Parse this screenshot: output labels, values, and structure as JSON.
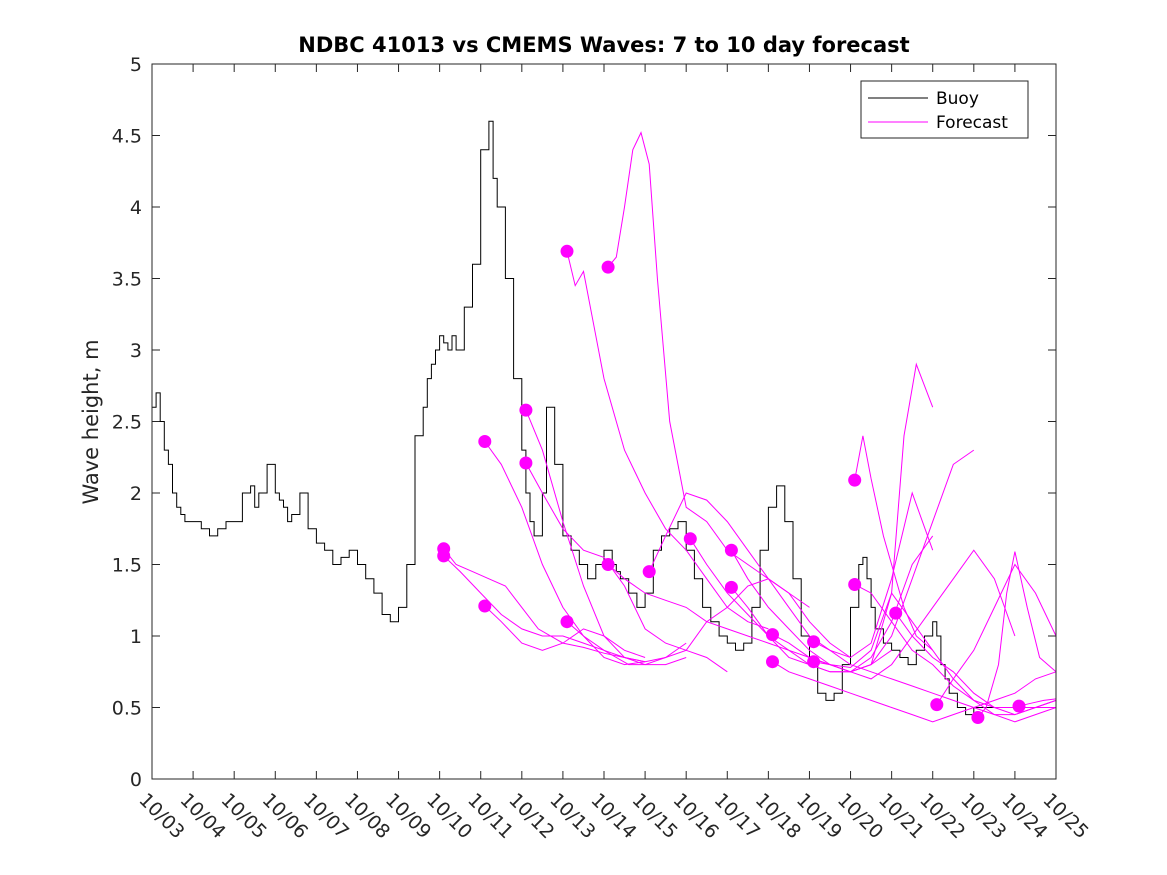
{
  "chart_data": {
    "type": "line",
    "title": "NDBC 41013 vs CMEMS Waves: 7 to 10 day forecast",
    "xlabel": "",
    "ylabel": "Wave height, m",
    "xlim": [
      0,
      22
    ],
    "ylim": [
      0,
      5
    ],
    "x_ticks": [
      0,
      1,
      2,
      3,
      4,
      5,
      6,
      7,
      8,
      9,
      10,
      11,
      12,
      13,
      14,
      15,
      16,
      17,
      18,
      19,
      20,
      21,
      22
    ],
    "x_tick_labels": [
      "10/03",
      "10/04",
      "10/05",
      "10/06",
      "10/07",
      "10/08",
      "10/09",
      "10/10",
      "10/11",
      "10/12",
      "10/13",
      "10/14",
      "10/15",
      "10/16",
      "10/17",
      "10/18",
      "10/19",
      "10/20",
      "10/21",
      "10/22",
      "10/23",
      "10/24",
      "10/25"
    ],
    "y_ticks": [
      0,
      0.5,
      1,
      1.5,
      2,
      2.5,
      3,
      3.5,
      4,
      4.5,
      5
    ],
    "y_tick_labels": [
      "0",
      "0.5",
      "1",
      "1.5",
      "2",
      "2.5",
      "3",
      "3.5",
      "4",
      "4.5",
      "5"
    ],
    "legend": {
      "position": "top-right",
      "entries": [
        {
          "label": "Buoy",
          "color": "#000000"
        },
        {
          "label": "Forecast",
          "color": "#ff00ff"
        }
      ]
    },
    "buoy": {
      "name": "Buoy",
      "color": "#000000",
      "x": [
        0,
        0.1,
        0.2,
        0.3,
        0.4,
        0.5,
        0.6,
        0.7,
        0.8,
        0.9,
        1,
        1.2,
        1.4,
        1.6,
        1.8,
        2,
        2.2,
        2.4,
        2.5,
        2.6,
        2.8,
        3,
        3.1,
        3.2,
        3.3,
        3.4,
        3.6,
        3.8,
        4,
        4.2,
        4.4,
        4.6,
        4.8,
        5,
        5.2,
        5.4,
        5.6,
        5.8,
        6,
        6.2,
        6.4,
        6.6,
        6.7,
        6.8,
        6.9,
        7,
        7.1,
        7.2,
        7.3,
        7.4,
        7.6,
        7.8,
        8,
        8.2,
        8.3,
        8.4,
        8.6,
        8.8,
        9,
        9.1,
        9.2,
        9.3,
        9.4,
        9.5,
        9.6,
        9.8,
        10,
        10.2,
        10.4,
        10.6,
        10.8,
        11,
        11.2,
        11.3,
        11.4,
        11.6,
        11.8,
        12,
        12.2,
        12.4,
        12.6,
        12.8,
        13,
        13.2,
        13.4,
        13.6,
        13.8,
        14,
        14.2,
        14.4,
        14.6,
        14.8,
        15,
        15.2,
        15.4,
        15.6,
        15.8,
        16,
        16.2,
        16.4,
        16.6,
        16.8,
        17,
        17.2,
        17.3,
        17.4,
        17.5,
        17.6,
        17.8,
        18,
        18.2,
        18.4,
        18.6,
        18.8,
        19,
        19.1,
        19.2,
        19.3,
        19.4,
        19.6,
        19.8,
        20,
        20.2,
        20.4,
        20.6,
        20.8,
        21,
        21.2,
        21.4,
        22
      ],
      "y": [
        2.6,
        2.7,
        2.5,
        2.3,
        2.2,
        2.0,
        1.9,
        1.85,
        1.8,
        1.8,
        1.8,
        1.75,
        1.7,
        1.75,
        1.8,
        1.8,
        2.0,
        2.05,
        1.9,
        2.0,
        2.2,
        2.0,
        1.95,
        1.9,
        1.8,
        1.85,
        2.0,
        1.75,
        1.65,
        1.6,
        1.5,
        1.55,
        1.6,
        1.5,
        1.4,
        1.3,
        1.15,
        1.1,
        1.2,
        1.5,
        2.4,
        2.6,
        2.8,
        2.9,
        3.0,
        3.1,
        3.05,
        3.0,
        3.1,
        3.0,
        3.3,
        3.6,
        4.4,
        4.6,
        4.2,
        4.0,
        3.5,
        2.8,
        2.3,
        2.0,
        1.8,
        1.7,
        1.7,
        2.0,
        2.6,
        2.2,
        1.7,
        1.6,
        1.5,
        1.4,
        1.5,
        1.6,
        1.5,
        1.45,
        1.4,
        1.3,
        1.2,
        1.3,
        1.6,
        1.7,
        1.75,
        1.8,
        1.6,
        1.4,
        1.2,
        1.1,
        1.0,
        0.95,
        0.9,
        0.95,
        1.2,
        1.6,
        1.9,
        2.05,
        1.8,
        1.4,
        1.0,
        0.8,
        0.6,
        0.55,
        0.6,
        0.8,
        1.2,
        1.5,
        1.55,
        1.4,
        1.2,
        1.05,
        0.95,
        0.9,
        0.85,
        0.8,
        0.9,
        1.0,
        1.1,
        1.0,
        0.8,
        0.7,
        0.6,
        0.5,
        0.45,
        0.5,
        0.5,
        0.5,
        0.5,
        0.5,
        0.5,
        0.5,
        0.5,
        0.5
      ]
    },
    "series": [
      {
        "name": "Forecast 1",
        "color": "#ff00ff",
        "x": [
          7.1,
          7.4,
          7.8,
          8.2,
          8.6,
          9.0,
          9.4,
          10.0,
          10.5,
          11.0,
          11.5,
          12.0
        ],
        "y": [
          1.61,
          1.5,
          1.45,
          1.4,
          1.35,
          1.2,
          1.05,
          0.95,
          0.92,
          0.88,
          0.85,
          0.82
        ]
      },
      {
        "name": "Forecast 2",
        "color": "#ff00ff",
        "x": [
          7.1,
          7.5,
          8.0,
          8.5,
          9.0,
          9.5,
          10.0,
          10.5,
          11.0,
          11.5,
          12.0
        ],
        "y": [
          1.56,
          1.45,
          1.3,
          1.15,
          1.05,
          1.0,
          1.0,
          0.95,
          0.9,
          0.85,
          0.82
        ]
      },
      {
        "name": "Forecast 3",
        "color": "#ff00ff",
        "x": [
          8.1,
          8.5,
          9.0,
          9.5,
          10.0,
          10.5,
          11.0,
          11.5,
          12.0,
          12.5,
          13.0
        ],
        "y": [
          2.36,
          2.2,
          1.9,
          1.5,
          1.2,
          1.0,
          0.85,
          0.8,
          0.82,
          0.85,
          0.95
        ]
      },
      {
        "name": "Forecast 4",
        "color": "#ff00ff",
        "x": [
          8.1,
          8.5,
          9.0,
          9.5,
          10.0,
          10.5,
          11.0,
          11.5,
          12.0
        ],
        "y": [
          1.21,
          1.1,
          0.95,
          0.9,
          0.95,
          1.05,
          1.0,
          0.9,
          0.85
        ]
      },
      {
        "name": "Forecast 5",
        "color": "#ff00ff",
        "x": [
          9.1,
          9.5,
          10.0,
          10.5,
          11.0,
          11.5,
          12.0,
          12.5,
          13.0
        ],
        "y": [
          2.58,
          2.3,
          1.8,
          1.35,
          1.0,
          0.85,
          0.8,
          0.8,
          0.85
        ]
      },
      {
        "name": "Forecast 6",
        "color": "#ff00ff",
        "x": [
          9.1,
          9.5,
          10.0,
          10.5,
          11.0,
          11.5,
          12.0,
          12.5,
          13.0,
          13.5,
          14.0
        ],
        "y": [
          2.21,
          2.0,
          1.75,
          1.6,
          1.55,
          1.35,
          1.05,
          0.95,
          0.9,
          0.85,
          0.75
        ]
      },
      {
        "name": "Forecast 7",
        "color": "#ff00ff",
        "x": [
          10.1,
          10.3,
          10.5,
          10.8,
          11.0,
          11.5,
          12.0,
          12.5,
          13.0,
          13.5,
          14.0,
          14.5,
          15.0
        ],
        "y": [
          3.69,
          3.45,
          3.55,
          3.1,
          2.8,
          2.3,
          2.0,
          1.75,
          1.6,
          1.4,
          1.2,
          1.1,
          1.05
        ]
      },
      {
        "name": "Forecast 8",
        "color": "#ff00ff",
        "x": [
          10.1,
          10.5,
          11.0,
          11.3,
          11.6,
          12.0,
          12.5,
          13.0,
          13.5,
          14.0,
          14.5,
          15.0,
          15.5,
          16.0
        ],
        "y": [
          1.1,
          1.0,
          0.9,
          0.85,
          0.8,
          0.8,
          0.85,
          0.9,
          1.1,
          1.2,
          1.35,
          1.4,
          1.3,
          1.2
        ]
      },
      {
        "name": "Forecast 9",
        "color": "#ff00ff",
        "x": [
          11.1,
          11.3,
          11.5,
          11.7,
          11.9,
          12.1,
          12.3,
          12.6,
          13.0,
          13.5,
          14.0,
          14.5,
          15.0,
          15.5,
          16.0,
          16.5,
          17.0
        ],
        "y": [
          3.58,
          3.65,
          4.0,
          4.4,
          4.52,
          4.3,
          3.5,
          2.5,
          1.9,
          1.8,
          1.6,
          1.5,
          1.4,
          1.3,
          1.1,
          0.95,
          0.85
        ]
      },
      {
        "name": "Forecast 10",
        "color": "#ff00ff",
        "x": [
          11.1,
          11.5,
          12.0,
          12.5,
          13.0,
          13.5,
          14.0,
          14.5,
          15.0,
          15.5,
          16.0,
          16.5,
          17.0,
          17.5,
          18.0
        ],
        "y": [
          1.5,
          1.4,
          1.3,
          1.25,
          1.2,
          1.1,
          1.05,
          1.0,
          0.95,
          0.9,
          0.85,
          0.8,
          0.75,
          0.8,
          0.9
        ]
      },
      {
        "name": "Forecast 11",
        "color": "#ff00ff",
        "x": [
          12.1,
          12.5,
          13.0,
          13.5,
          14.0,
          14.5,
          15.0,
          15.5,
          16.0,
          16.5,
          17.0,
          17.5,
          18.0,
          18.5,
          19.0
        ],
        "y": [
          1.45,
          1.7,
          2.0,
          1.95,
          1.8,
          1.6,
          1.4,
          1.2,
          1.0,
          0.9,
          0.85,
          0.95,
          1.4,
          2.0,
          1.6
        ]
      },
      {
        "name": "Forecast 12",
        "color": "#ff00ff",
        "x": [
          13.1,
          13.5,
          14.0,
          14.5,
          15.0,
          15.5,
          16.0,
          16.5,
          17.0,
          17.5,
          18.0,
          18.5,
          19.0,
          19.5,
          20.0
        ],
        "y": [
          1.68,
          1.5,
          1.3,
          1.15,
          1.0,
          0.9,
          0.8,
          0.75,
          0.75,
          0.8,
          1.0,
          1.4,
          1.8,
          2.2,
          2.3
        ]
      },
      {
        "name": "Forecast 13",
        "color": "#ff00ff",
        "x": [
          14.1,
          14.5,
          15.0,
          15.5,
          16.0,
          16.5,
          17.0,
          17.5,
          18.0,
          18.3,
          18.6,
          19.0
        ],
        "y": [
          1.6,
          1.4,
          1.2,
          1.05,
          0.9,
          0.8,
          0.75,
          0.8,
          1.3,
          2.4,
          2.9,
          2.6
        ]
      },
      {
        "name": "Forecast 14",
        "color": "#ff00ff",
        "x": [
          14.1,
          14.5,
          15.0,
          15.5,
          16.0,
          16.5,
          17.0,
          17.5,
          18.0,
          18.5,
          19.0
        ],
        "y": [
          1.34,
          1.2,
          1.0,
          0.85,
          0.8,
          0.75,
          0.75,
          0.85,
          1.1,
          1.5,
          1.7
        ]
      },
      {
        "name": "Forecast 15",
        "color": "#ff00ff",
        "x": [
          15.1,
          15.5,
          16.0,
          16.5,
          17.0,
          17.5,
          18.0,
          18.5,
          19.0,
          19.5,
          20.0,
          20.5,
          21.0
        ],
        "y": [
          1.01,
          0.95,
          0.85,
          0.8,
          0.75,
          0.7,
          0.8,
          1.0,
          1.2,
          1.4,
          1.6,
          1.4,
          1.0
        ]
      },
      {
        "name": "Forecast 16",
        "color": "#ff00ff",
        "x": [
          15.1,
          15.5,
          16.0,
          16.5,
          17.0,
          17.5,
          18.0,
          18.5,
          19.0,
          19.5,
          20.0,
          20.5,
          21.0,
          21.5,
          22.0
        ],
        "y": [
          0.82,
          0.75,
          0.7,
          0.65,
          0.6,
          0.55,
          0.5,
          0.45,
          0.4,
          0.45,
          0.5,
          0.55,
          0.6,
          0.7,
          0.75
        ]
      },
      {
        "name": "Forecast 17",
        "color": "#ff00ff",
        "x": [
          16.1,
          16.5,
          17.0,
          17.5,
          18.0,
          18.5,
          19.0,
          19.5,
          20.0,
          20.5,
          21.0,
          21.5,
          22.0
        ],
        "y": [
          0.96,
          0.9,
          0.8,
          0.75,
          0.7,
          0.65,
          0.6,
          0.55,
          0.5,
          0.45,
          0.45,
          0.5,
          0.55
        ]
      },
      {
        "name": "Forecast 18",
        "color": "#ff00ff",
        "x": [
          16.1,
          16.5,
          17.0,
          17.5,
          18.0,
          18.5,
          19.0,
          19.5,
          20.0,
          20.5,
          21.0,
          21.5,
          22.0
        ],
        "y": [
          0.82,
          0.8,
          0.78,
          0.9,
          1.3,
          1.1,
          0.9,
          0.7,
          0.55,
          0.45,
          0.4,
          0.45,
          0.5
        ]
      },
      {
        "name": "Forecast 19",
        "color": "#ff00ff",
        "x": [
          17.1,
          17.3,
          17.5,
          17.8,
          18.0,
          18.3,
          18.6,
          19.0
        ],
        "y": [
          2.09,
          2.4,
          2.1,
          1.7,
          1.5,
          1.2,
          1.0,
          0.9
        ]
      },
      {
        "name": "Forecast 20",
        "color": "#ff00ff",
        "x": [
          17.1,
          17.5,
          18.0,
          18.5,
          19.0,
          19.5,
          20.0,
          20.5,
          21.0,
          21.5,
          22.0
        ],
        "y": [
          1.36,
          1.3,
          1.1,
          0.9,
          0.8,
          0.65,
          0.55,
          0.5,
          0.5,
          0.5,
          0.5
        ]
      },
      {
        "name": "Forecast 21",
        "color": "#ff00ff",
        "x": [
          18.1,
          18.5,
          19.0,
          19.5,
          20.0,
          20.5,
          21.0,
          21.5,
          22.0
        ],
        "y": [
          1.16,
          1.0,
          0.85,
          0.75,
          0.6,
          0.5,
          0.45,
          0.5,
          0.55
        ]
      },
      {
        "name": "Forecast 22",
        "color": "#ff00ff",
        "x": [
          19.1,
          19.5,
          20.0,
          20.5,
          21.0,
          21.5,
          22.0
        ],
        "y": [
          0.52,
          0.7,
          0.9,
          1.2,
          1.5,
          1.3,
          1.0
        ]
      },
      {
        "name": "Forecast 23",
        "color": "#ff00ff",
        "x": [
          20.1,
          20.3,
          20.6,
          20.8,
          21.0,
          21.3,
          21.6,
          22.0
        ],
        "y": [
          0.43,
          0.5,
          0.8,
          1.3,
          1.59,
          1.2,
          0.85,
          0.75
        ]
      },
      {
        "name": "Forecast 24",
        "color": "#ff00ff",
        "x": [
          21.1,
          21.4,
          21.7,
          22.0
        ],
        "y": [
          0.51,
          0.53,
          0.55,
          0.56
        ]
      }
    ],
    "forecast_start_markers": {
      "color": "#ff00ff",
      "points": [
        {
          "x": 7.1,
          "y": 1.61
        },
        {
          "x": 7.1,
          "y": 1.56
        },
        {
          "x": 8.1,
          "y": 2.36
        },
        {
          "x": 8.1,
          "y": 1.21
        },
        {
          "x": 9.1,
          "y": 2.58
        },
        {
          "x": 9.1,
          "y": 2.21
        },
        {
          "x": 10.1,
          "y": 3.69
        },
        {
          "x": 10.1,
          "y": 1.1
        },
        {
          "x": 11.1,
          "y": 3.58
        },
        {
          "x": 11.1,
          "y": 1.5
        },
        {
          "x": 12.1,
          "y": 1.45
        },
        {
          "x": 13.1,
          "y": 1.68
        },
        {
          "x": 14.1,
          "y": 1.6
        },
        {
          "x": 14.1,
          "y": 1.34
        },
        {
          "x": 15.1,
          "y": 1.01
        },
        {
          "x": 15.1,
          "y": 0.82
        },
        {
          "x": 16.1,
          "y": 0.96
        },
        {
          "x": 16.1,
          "y": 0.82
        },
        {
          "x": 17.1,
          "y": 2.09
        },
        {
          "x": 17.1,
          "y": 1.36
        },
        {
          "x": 18.1,
          "y": 1.16
        },
        {
          "x": 19.1,
          "y": 0.52
        },
        {
          "x": 20.1,
          "y": 0.43
        },
        {
          "x": 21.1,
          "y": 0.51
        }
      ]
    }
  }
}
